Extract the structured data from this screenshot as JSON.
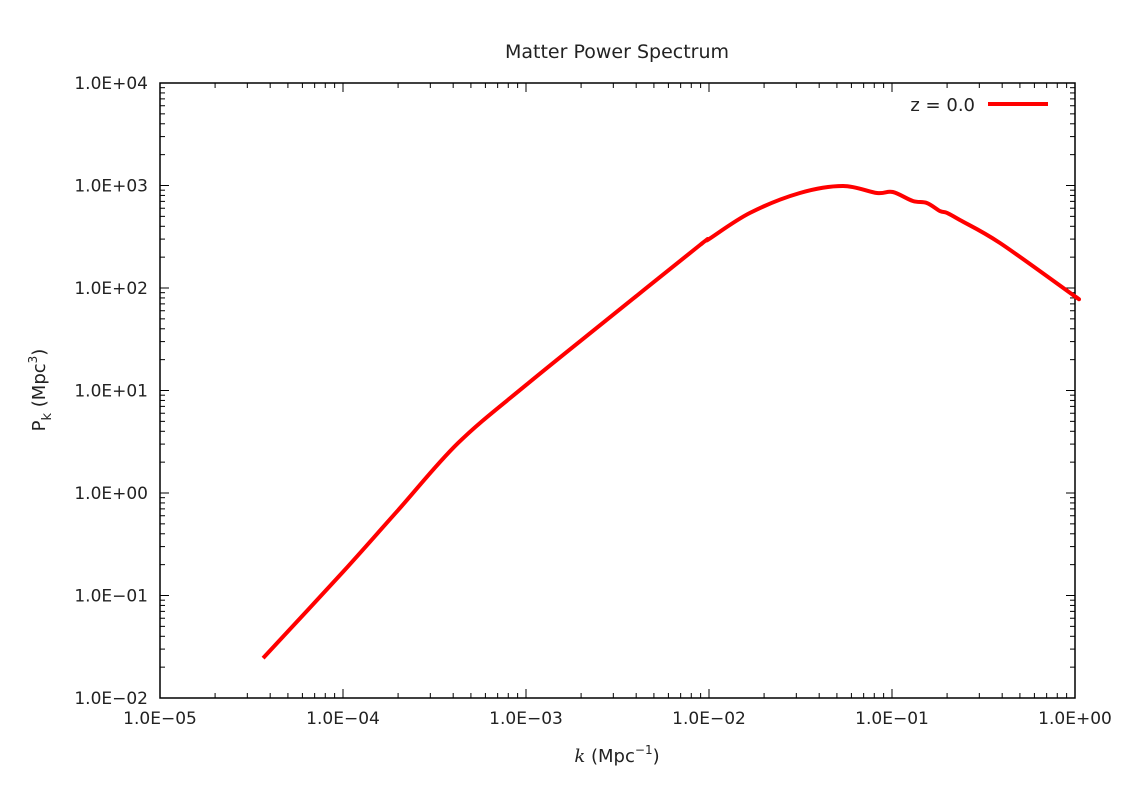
{
  "chart_data": {
    "type": "line",
    "title": "Matter Power Spectrum",
    "xlabel_main": "k",
    "xlabel_unit": " (Mpc",
    "xlabel_sup": "−1",
    "xlabel_close": ")",
    "ylabel_main": "P",
    "ylabel_sub": "k",
    "ylabel_unit": " (Mpc",
    "ylabel_sup": "3",
    "ylabel_close": ")",
    "x_scale": "log",
    "y_scale": "log",
    "xlim": [
      1e-05,
      1
    ],
    "ylim": [
      0.01,
      10000.0
    ],
    "x_ticks": [
      1e-05,
      0.0001,
      0.001,
      0.01,
      0.1,
      1
    ],
    "x_tick_labels": [
      "1.0E−05",
      "1.0E−04",
      "1.0E−03",
      "1.0E−02",
      "1.0E−01",
      "1.0E+00"
    ],
    "y_ticks": [
      0.01,
      0.1,
      1,
      10,
      100,
      1000,
      10000
    ],
    "y_tick_labels": [
      "1.0E−02",
      "1.0E−01",
      "1.0E+00",
      "1.0E+01",
      "1.0E+02",
      "1.0E+03",
      "1.0E+04"
    ],
    "grid": false,
    "legend_position": "top-right",
    "series": [
      {
        "name": "z = 0.0",
        "color": "#ff0000",
        "x": [
          3.66e-05,
          0.0001,
          0.0002,
          0.000425,
          0.001,
          0.003,
          0.00893,
          0.01,
          0.01675,
          0.0314,
          0.054,
          0.0828,
          0.101,
          0.13,
          0.155,
          0.183,
          0.2,
          0.235,
          0.389,
          0.975,
          1.0
        ],
        "y": [
          0.0245,
          0.17,
          0.68,
          3.07,
          11.3,
          55,
          263,
          300,
          540,
          845,
          989,
          845,
          865,
          706,
          675,
          563,
          540,
          461,
          275,
          85.5,
          83
        ]
      }
    ]
  }
}
